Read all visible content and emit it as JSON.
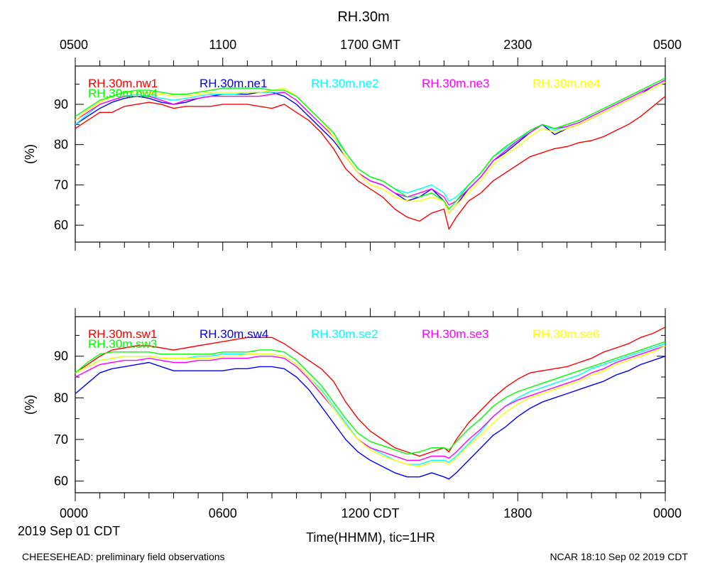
{
  "title": "RH.30m",
  "footer": {
    "left": "CHEESEHEAD: preliminary field observations",
    "right": "NCAR 18:10 Sep 02 2019 CDT"
  },
  "date_label": "2019 Sep 01 CDT",
  "xlabel": "Time(HHMM), tic=1HR",
  "ylabel": "(%)",
  "top_axis_ticks": [
    "0500",
    "1100",
    "1700 GMT",
    "2300",
    "0500"
  ],
  "bottom_axis_ticks": [
    "0000",
    "0600",
    "1200 CDT",
    "1800",
    "0000"
  ],
  "chart_data": [
    {
      "type": "line",
      "panel": "top",
      "xlim": [
        0,
        24
      ],
      "ylim": [
        55.8,
        99.5
      ],
      "y_ticks": [
        60,
        70,
        80,
        90
      ],
      "x_ticks_hours": [
        0,
        6,
        12,
        18,
        24
      ],
      "x": [
        0,
        0.5,
        1,
        1.5,
        2,
        2.5,
        3,
        3.5,
        4,
        4.5,
        5,
        5.5,
        6,
        6.5,
        7,
        7.5,
        8,
        8.5,
        9,
        9.5,
        10,
        10.5,
        11,
        11.5,
        12,
        12.5,
        13,
        13.5,
        14,
        14.5,
        15,
        15.2,
        15.5,
        16,
        16.5,
        17,
        17.5,
        18,
        18.5,
        19,
        19.5,
        20,
        20.5,
        21,
        21.5,
        22,
        22.5,
        23,
        23.5,
        24
      ],
      "series": [
        {
          "name": "RH.30m.nw1",
          "color": "#ff0000",
          "values": [
            84,
            86,
            88,
            88,
            89.5,
            90,
            90.5,
            90,
            89,
            89.5,
            89.5,
            89.5,
            90,
            90,
            90,
            89.5,
            89,
            90,
            88,
            86,
            83,
            79,
            74,
            71,
            69,
            67,
            64,
            62,
            61,
            63,
            64,
            59,
            62,
            66,
            68,
            71,
            73,
            75,
            77,
            78,
            79,
            79.5,
            80.5,
            81,
            82,
            83.5,
            85,
            87,
            89.5,
            92
          ]
        },
        {
          "name": "RH.30m.ne1",
          "color": "#0000ff",
          "values": [
            85,
            87,
            89,
            90.5,
            91.5,
            92,
            91.5,
            90.5,
            90,
            90.5,
            91.5,
            92,
            92.5,
            92.5,
            92.5,
            93,
            93,
            92,
            90,
            87,
            84,
            81,
            77,
            73,
            71,
            70,
            68,
            66,
            67,
            69,
            66,
            63,
            65,
            69,
            72,
            76,
            78,
            80.5,
            83,
            85,
            82.5,
            84,
            85,
            86.5,
            88,
            89.5,
            91,
            92.5,
            94.5,
            96
          ]
        },
        {
          "name": "RH.30m.ne2",
          "color": "#00ffff",
          "values": [
            85,
            87.5,
            90,
            91,
            92,
            92.5,
            92,
            91.5,
            91,
            91.5,
            92,
            92.5,
            92.5,
            92.5,
            93,
            93,
            93,
            93,
            91,
            88,
            85,
            82,
            78,
            74,
            72,
            71,
            69,
            68,
            69,
            70,
            68,
            66,
            67,
            70,
            73,
            77,
            79,
            81,
            83.5,
            85,
            83.5,
            84.5,
            85.5,
            87,
            88.5,
            90,
            91.5,
            93,
            94.5,
            96
          ]
        },
        {
          "name": "RH.30m.ne3",
          "color": "#ff00ff",
          "values": [
            86,
            88,
            90,
            91,
            92,
            92,
            92,
            91,
            90,
            91,
            91.5,
            92,
            92,
            92,
            92,
            92,
            92.5,
            93,
            91,
            88,
            85,
            82,
            77,
            73,
            71,
            70,
            68,
            67,
            68,
            69,
            67,
            65,
            66,
            69,
            72,
            76,
            78.5,
            81,
            83,
            85,
            84,
            84.5,
            85.5,
            87,
            88.5,
            90,
            91.5,
            93,
            94.5,
            96
          ]
        },
        {
          "name": "RH.30m.ne4",
          "color": "#ffff00",
          "values": [
            86,
            88.5,
            90.5,
            92,
            93,
            93,
            93,
            92.5,
            92,
            92,
            92.5,
            93,
            93,
            93,
            93,
            93,
            93.5,
            94,
            92,
            89,
            86,
            82,
            77,
            73,
            70,
            69,
            67,
            66,
            66,
            67,
            66,
            63,
            65,
            68,
            71,
            75,
            77.5,
            79.5,
            82,
            84,
            83,
            84,
            85,
            86.5,
            88,
            89.5,
            91,
            92.5,
            94,
            95.5
          ]
        },
        {
          "name": "RH.30m.nw4",
          "color": "#00ff00",
          "values": [
            87,
            89,
            91,
            92,
            93,
            93.5,
            93.5,
            93,
            92.5,
            92.5,
            93,
            93.5,
            94,
            94,
            94,
            94,
            93.5,
            93.5,
            92,
            89,
            86,
            83,
            78,
            74,
            72,
            71,
            69,
            67,
            67,
            68,
            66,
            64,
            66,
            70,
            73,
            77,
            79.5,
            81.5,
            83.5,
            85,
            84,
            85,
            86,
            87.5,
            89,
            90.5,
            92,
            93.5,
            95,
            96.5
          ]
        }
      ]
    },
    {
      "type": "line",
      "panel": "bottom",
      "xlim": [
        0,
        24
      ],
      "ylim": [
        57.2,
        99.5
      ],
      "y_ticks": [
        60,
        70,
        80,
        90
      ],
      "x_ticks_hours": [
        0,
        6,
        12,
        18,
        24
      ],
      "x": [
        0,
        0.5,
        1,
        1.5,
        2,
        2.5,
        3,
        3.5,
        4,
        4.5,
        5,
        5.5,
        6,
        6.5,
        7,
        7.5,
        8,
        8.5,
        9,
        9.5,
        10,
        10.5,
        11,
        11.5,
        12,
        12.5,
        13,
        13.5,
        14,
        14.5,
        15,
        15.2,
        15.5,
        16,
        16.5,
        17,
        17.5,
        18,
        18.5,
        19,
        19.5,
        20,
        20.5,
        21,
        21.5,
        22,
        22.5,
        23,
        23.5,
        24
      ],
      "series": [
        {
          "name": "RH.30m.sw1",
          "color": "#ff0000",
          "values": [
            86,
            88,
            90,
            91.5,
            92,
            92.5,
            92.5,
            92,
            91.5,
            92,
            92.5,
            93,
            93.5,
            94,
            94.5,
            94.5,
            94.5,
            93,
            91,
            89,
            87,
            84,
            79,
            75,
            72,
            70,
            68,
            67,
            66,
            67,
            68,
            67,
            70,
            74,
            77,
            80,
            82.5,
            84.5,
            86,
            86.5,
            87,
            87.5,
            88.5,
            89.5,
            91,
            92,
            93,
            94.5,
            95.5,
            97
          ]
        },
        {
          "name": "RH.30m.sw4",
          "color": "#0000ff",
          "values": [
            81,
            83.5,
            86,
            87,
            87.5,
            88,
            88.5,
            87.5,
            86.5,
            86.5,
            86.5,
            86.5,
            86.5,
            87,
            87,
            87.5,
            87.5,
            87,
            85,
            82,
            78,
            74,
            70,
            67,
            65,
            63.5,
            62,
            61,
            61,
            62,
            61,
            60.5,
            62,
            65,
            68,
            71,
            73,
            75.5,
            77.5,
            79,
            80,
            81,
            82,
            83,
            84,
            85.5,
            86.5,
            88,
            89,
            90
          ]
        },
        {
          "name": "RH.30m.se2",
          "color": "#00ffff",
          "values": [
            86,
            87.5,
            89,
            89.5,
            90,
            90,
            90,
            89.5,
            89.5,
            89.5,
            90,
            90,
            90.5,
            90.5,
            90.5,
            90.5,
            90.5,
            90,
            88,
            85,
            82,
            78,
            74,
            70,
            68,
            66.5,
            65,
            64,
            64,
            65,
            65,
            64.5,
            66,
            69,
            72,
            75.5,
            78,
            80,
            81.5,
            82.5,
            83.5,
            84.5,
            85.5,
            87,
            88,
            89,
            90,
            91,
            92,
            93
          ]
        },
        {
          "name": "RH.30m.se3",
          "color": "#ff00ff",
          "values": [
            85,
            86.5,
            88,
            88.5,
            89,
            89,
            89.5,
            89,
            88.5,
            88.5,
            89,
            89,
            89.5,
            89.5,
            89.5,
            90,
            90,
            89.5,
            87.5,
            84.5,
            81,
            77.5,
            73.5,
            70,
            68,
            67,
            66,
            65,
            65,
            66,
            66,
            65.5,
            67,
            70,
            72.5,
            75.5,
            78,
            79.5,
            80.5,
            81.5,
            82.5,
            83.5,
            84.5,
            86,
            87,
            88.5,
            89.5,
            90.5,
            91.5,
            92.5
          ]
        },
        {
          "name": "RH.30m.se6",
          "color": "#ffff00",
          "values": [
            86,
            87.5,
            89,
            89.5,
            90,
            90,
            90,
            89.5,
            89.5,
            89.5,
            89.5,
            89.5,
            90,
            90,
            90.5,
            90.5,
            90.5,
            90,
            88,
            85,
            81.5,
            77.5,
            73.5,
            70,
            67.5,
            66,
            65,
            64,
            63.5,
            64.5,
            64.5,
            64,
            65.5,
            68.5,
            71,
            74,
            76.5,
            78.5,
            80,
            81,
            82,
            83,
            84,
            85.5,
            86.5,
            88,
            89,
            90,
            91,
            92.5
          ]
        },
        {
          "name": "RH.30m.sw3",
          "color": "#00ff00",
          "values": [
            86,
            88.5,
            90.5,
            91,
            91,
            91,
            91,
            90.5,
            90.5,
            90.5,
            90.5,
            90.5,
            91,
            91,
            91,
            91.5,
            91.5,
            91,
            89,
            86,
            83,
            79,
            75,
            71.5,
            69.5,
            68.5,
            67.5,
            66.5,
            67,
            68,
            68,
            67.5,
            69.5,
            72.5,
            75,
            78,
            80,
            81.5,
            82.5,
            83.5,
            84.5,
            85.5,
            86.5,
            87.5,
            88.5,
            89.5,
            90.5,
            91.5,
            92.5,
            93.5
          ]
        }
      ]
    }
  ]
}
